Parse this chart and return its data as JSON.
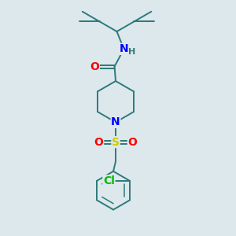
{
  "background_color": "#dde8ec",
  "bond_color": "#2d7a7a",
  "atom_colors": {
    "O": "#ff0000",
    "N": "#0000ff",
    "S": "#cccc00",
    "Cl": "#00bb00",
    "H": "#2d7a7a",
    "C": "#2d7a7a"
  },
  "font_size_atom": 10,
  "font_size_small": 8,
  "title": ""
}
